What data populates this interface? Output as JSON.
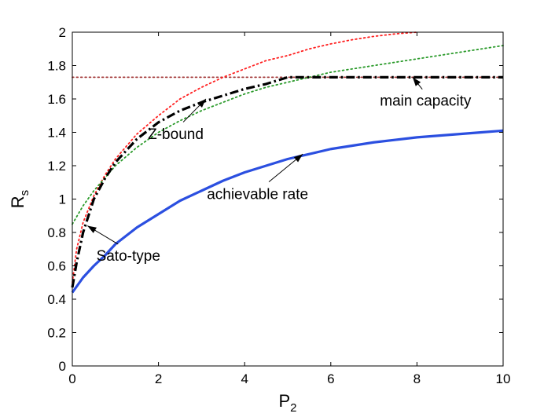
{
  "chart_data": {
    "type": "line",
    "title": "",
    "xlabel": "P",
    "xlabel_sub": "2",
    "ylabel": "R",
    "ylabel_sub": "s",
    "xlim": [
      0,
      10
    ],
    "ylim": [
      0,
      2
    ],
    "xticks": [
      "0",
      "2",
      "4",
      "6",
      "8",
      "10"
    ],
    "yticks": [
      "0",
      "0.2",
      "0.4",
      "0.6",
      "0.8",
      "1",
      "1.2",
      "1.4",
      "1.6",
      "1.8",
      "2"
    ],
    "grid": false,
    "series": [
      {
        "name": "achievable rate",
        "color": "#2b4fe0",
        "style": "solid",
        "x": [
          0,
          0.25,
          0.5,
          0.75,
          1,
          1.5,
          2,
          2.5,
          3,
          3.5,
          4,
          4.5,
          5,
          5.5,
          6,
          6.5,
          7,
          7.5,
          8,
          8.5,
          9,
          9.5,
          10
        ],
        "y": [
          0.44,
          0.53,
          0.6,
          0.66,
          0.73,
          0.83,
          0.91,
          0.99,
          1.05,
          1.11,
          1.16,
          1.2,
          1.24,
          1.27,
          1.3,
          1.32,
          1.34,
          1.355,
          1.37,
          1.38,
          1.39,
          1.4,
          1.41
        ]
      },
      {
        "name": "Z-bound",
        "color": "#000000",
        "style": "dashdot",
        "x": [
          0,
          0.1,
          0.25,
          0.5,
          0.75,
          1,
          1.5,
          2,
          2.5,
          3,
          3.5,
          4,
          4.5,
          5,
          6,
          7,
          8,
          9,
          10
        ],
        "y": [
          0.47,
          0.62,
          0.8,
          1.0,
          1.12,
          1.22,
          1.36,
          1.46,
          1.53,
          1.58,
          1.62,
          1.66,
          1.69,
          1.73,
          1.73,
          1.73,
          1.73,
          1.73,
          1.73
        ]
      },
      {
        "name": "main capacity",
        "color": "#a33a3a",
        "style": "dotted",
        "x": [
          0,
          2,
          4,
          6,
          8,
          10
        ],
        "y": [
          1.73,
          1.73,
          1.73,
          1.73,
          1.73,
          1.73
        ]
      },
      {
        "name": "Sato-type",
        "color": "#ff2020",
        "style": "dotted",
        "x": [
          0,
          0.1,
          0.25,
          0.5,
          0.75,
          1,
          1.5,
          2,
          2.5,
          3,
          3.5,
          4,
          4.5,
          5,
          5.5,
          6,
          6.5,
          7,
          7.5,
          8
        ],
        "y": [
          0.5,
          0.7,
          0.86,
          1.02,
          1.14,
          1.24,
          1.39,
          1.5,
          1.6,
          1.67,
          1.73,
          1.78,
          1.83,
          1.86,
          1.9,
          1.93,
          1.955,
          1.975,
          1.99,
          2.0
        ]
      },
      {
        "name": "",
        "color": "#2a9a2a",
        "style": "dotted",
        "x": [
          0,
          0.25,
          0.5,
          1,
          1.5,
          2,
          2.5,
          3,
          3.5,
          4,
          4.5,
          5,
          5.5,
          6,
          6.5,
          7,
          7.5,
          8,
          8.5,
          9,
          9.5,
          10
        ],
        "y": [
          0.85,
          0.96,
          1.05,
          1.2,
          1.31,
          1.4,
          1.47,
          1.53,
          1.58,
          1.63,
          1.67,
          1.7,
          1.73,
          1.76,
          1.78,
          1.8,
          1.82,
          1.84,
          1.86,
          1.88,
          1.9,
          1.92
        ]
      }
    ],
    "annotations": [
      {
        "text": "main capacity",
        "x": 8.2,
        "y": 1.56,
        "arrow_to": [
          7.9,
          1.73
        ]
      },
      {
        "text": "Z-bound",
        "x": 2.4,
        "y": 1.36,
        "arrow_to": [
          3.1,
          1.6
        ]
      },
      {
        "text": "achievable rate",
        "x": 4.3,
        "y": 1.0,
        "arrow_to": [
          5.35,
          1.27
        ]
      },
      {
        "text": "Sato-type",
        "x": 1.3,
        "y": 0.63,
        "arrow_to": [
          0.35,
          0.84
        ]
      }
    ]
  }
}
